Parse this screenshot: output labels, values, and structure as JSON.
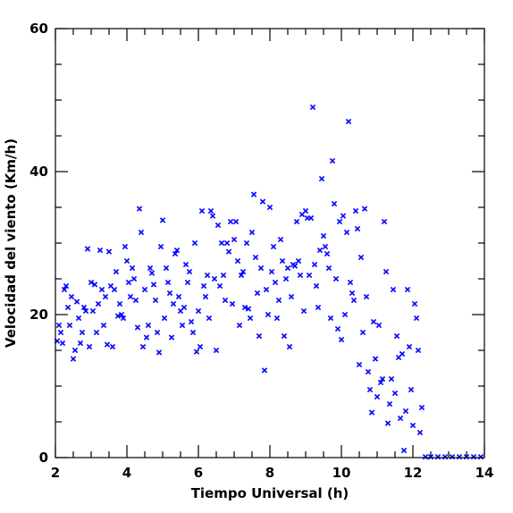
{
  "chart_data": {
    "type": "scatter",
    "title": "",
    "xlabel": "Tiempo Universal (h)",
    "ylabel": "Velocidad del viento (Km/h)",
    "xlim": [
      2,
      14
    ],
    "ylim": [
      0,
      60
    ],
    "x_ticks": [
      2,
      4,
      6,
      8,
      10,
      12,
      14
    ],
    "y_ticks": [
      0,
      20,
      40,
      60
    ],
    "x_tick_labels": [
      "2",
      "4",
      "6",
      "8",
      "10",
      "12",
      "14"
    ],
    "y_tick_labels": [
      "0",
      "20",
      "40",
      "60"
    ],
    "marker": "x",
    "marker_color": "#0000ff",
    "grid": false,
    "series": [
      {
        "points": [
          [
            2.05,
            16.3
          ],
          [
            2.1,
            18.5
          ],
          [
            2.15,
            17.5
          ],
          [
            2.2,
            16.0
          ],
          [
            2.25,
            23.5
          ],
          [
            2.3,
            24.0
          ],
          [
            2.35,
            21.0
          ],
          [
            2.4,
            18.5
          ],
          [
            2.45,
            22.5
          ],
          [
            2.5,
            13.8
          ],
          [
            2.55,
            15.0
          ],
          [
            2.6,
            21.8
          ],
          [
            2.65,
            19.5
          ],
          [
            2.7,
            16.0
          ],
          [
            2.75,
            17.5
          ],
          [
            2.8,
            21.0
          ],
          [
            2.85,
            20.5
          ],
          [
            2.9,
            29.2
          ],
          [
            2.95,
            15.5
          ],
          [
            3.0,
            24.5
          ],
          [
            3.05,
            20.5
          ],
          [
            3.1,
            24.2
          ],
          [
            3.15,
            17.5
          ],
          [
            3.2,
            21.5
          ],
          [
            3.25,
            29.0
          ],
          [
            3.3,
            23.5
          ],
          [
            3.35,
            18.5
          ],
          [
            3.4,
            22.5
          ],
          [
            3.45,
            15.8
          ],
          [
            3.5,
            28.8
          ],
          [
            3.55,
            24.0
          ],
          [
            3.6,
            15.5
          ],
          [
            3.65,
            23.5
          ],
          [
            3.7,
            26.0
          ],
          [
            3.75,
            19.8
          ],
          [
            3.8,
            21.5
          ],
          [
            3.85,
            20.0
          ],
          [
            3.9,
            19.5
          ],
          [
            3.95,
            29.5
          ],
          [
            4.0,
            27.5
          ],
          [
            4.05,
            24.5
          ],
          [
            4.1,
            22.5
          ],
          [
            4.15,
            26.5
          ],
          [
            4.2,
            25.0
          ],
          [
            4.25,
            22.0
          ],
          [
            4.3,
            18.2
          ],
          [
            4.35,
            34.8
          ],
          [
            4.4,
            31.5
          ],
          [
            4.45,
            15.5
          ],
          [
            4.5,
            23.5
          ],
          [
            4.55,
            16.8
          ],
          [
            4.6,
            18.5
          ],
          [
            4.65,
            26.5
          ],
          [
            4.7,
            25.8
          ],
          [
            4.75,
            24.2
          ],
          [
            4.8,
            22.0
          ],
          [
            4.85,
            17.5
          ],
          [
            4.9,
            14.7
          ],
          [
            4.95,
            29.5
          ],
          [
            5.0,
            33.2
          ],
          [
            5.05,
            19.5
          ],
          [
            5.1,
            26.5
          ],
          [
            5.15,
            24.5
          ],
          [
            5.2,
            23.0
          ],
          [
            5.25,
            16.8
          ],
          [
            5.3,
            21.5
          ],
          [
            5.35,
            28.5
          ],
          [
            5.4,
            29.0
          ],
          [
            5.45,
            22.5
          ],
          [
            5.5,
            20.5
          ],
          [
            5.55,
            18.5
          ],
          [
            5.6,
            21.0
          ],
          [
            5.65,
            27.0
          ],
          [
            5.7,
            24.5
          ],
          [
            5.75,
            26.0
          ],
          [
            5.8,
            19.0
          ],
          [
            5.85,
            17.5
          ],
          [
            5.9,
            30.0
          ],
          [
            5.95,
            14.8
          ],
          [
            6.0,
            20.5
          ],
          [
            6.05,
            15.5
          ],
          [
            6.1,
            34.5
          ],
          [
            6.15,
            24.0
          ],
          [
            6.2,
            22.5
          ],
          [
            6.25,
            25.5
          ],
          [
            6.3,
            19.5
          ],
          [
            6.35,
            34.5
          ],
          [
            6.4,
            33.8
          ],
          [
            6.45,
            25.0
          ],
          [
            6.5,
            15.0
          ],
          [
            6.55,
            32.5
          ],
          [
            6.6,
            24.0
          ],
          [
            6.65,
            30.0
          ],
          [
            6.7,
            25.5
          ],
          [
            6.75,
            22.0
          ],
          [
            6.8,
            30.0
          ],
          [
            6.85,
            28.8
          ],
          [
            6.9,
            33.0
          ],
          [
            6.95,
            21.5
          ],
          [
            7.0,
            30.5
          ],
          [
            7.05,
            33.0
          ],
          [
            7.1,
            27.5
          ],
          [
            7.15,
            18.5
          ],
          [
            7.2,
            25.5
          ],
          [
            7.25,
            26.0
          ],
          [
            7.3,
            21.0
          ],
          [
            7.35,
            30.0
          ],
          [
            7.4,
            20.8
          ],
          [
            7.45,
            19.5
          ],
          [
            7.5,
            31.5
          ],
          [
            7.55,
            36.8
          ],
          [
            7.6,
            28.0
          ],
          [
            7.65,
            23.0
          ],
          [
            7.7,
            17.0
          ],
          [
            7.75,
            26.5
          ],
          [
            7.8,
            35.8
          ],
          [
            7.85,
            12.2
          ],
          [
            7.9,
            23.5
          ],
          [
            7.95,
            20.0
          ],
          [
            8.0,
            35.0
          ],
          [
            8.05,
            26.0
          ],
          [
            8.1,
            29.5
          ],
          [
            8.15,
            24.5
          ],
          [
            8.2,
            19.5
          ],
          [
            8.25,
            22.0
          ],
          [
            8.3,
            30.5
          ],
          [
            8.35,
            27.5
          ],
          [
            8.4,
            17.0
          ],
          [
            8.45,
            25.0
          ],
          [
            8.5,
            26.5
          ],
          [
            8.55,
            15.5
          ],
          [
            8.6,
            22.5
          ],
          [
            8.65,
            27.0
          ],
          [
            8.7,
            26.8
          ],
          [
            8.75,
            33.0
          ],
          [
            8.8,
            27.5
          ],
          [
            8.85,
            25.5
          ],
          [
            8.9,
            34.0
          ],
          [
            8.95,
            20.5
          ],
          [
            9.0,
            34.5
          ],
          [
            9.05,
            33.5
          ],
          [
            9.1,
            25.5
          ],
          [
            9.15,
            33.5
          ],
          [
            9.2,
            49.0
          ],
          [
            9.25,
            27.0
          ],
          [
            9.3,
            24.0
          ],
          [
            9.35,
            21.0
          ],
          [
            9.4,
            29.0
          ],
          [
            9.45,
            39.0
          ],
          [
            9.5,
            31.0
          ],
          [
            9.55,
            29.5
          ],
          [
            9.6,
            28.5
          ],
          [
            9.65,
            26.5
          ],
          [
            9.7,
            19.5
          ],
          [
            9.75,
            41.5
          ],
          [
            9.8,
            35.5
          ],
          [
            9.85,
            25.0
          ],
          [
            9.9,
            18.0
          ],
          [
            9.95,
            33.0
          ],
          [
            10.0,
            16.5
          ],
          [
            10.05,
            33.8
          ],
          [
            10.1,
            20.0
          ],
          [
            10.15,
            31.5
          ],
          [
            10.2,
            47.0
          ],
          [
            10.25,
            24.5
          ],
          [
            10.3,
            23.0
          ],
          [
            10.35,
            22.0
          ],
          [
            10.4,
            34.5
          ],
          [
            10.45,
            32.0
          ],
          [
            10.5,
            13.0
          ],
          [
            10.55,
            28.0
          ],
          [
            10.6,
            17.5
          ],
          [
            10.65,
            34.8
          ],
          [
            10.7,
            22.5
          ],
          [
            10.75,
            12.0
          ],
          [
            10.8,
            9.5
          ],
          [
            10.85,
            6.3
          ],
          [
            10.9,
            19.0
          ],
          [
            10.95,
            13.8
          ],
          [
            11.0,
            8.5
          ],
          [
            11.05,
            18.5
          ],
          [
            11.1,
            10.5
          ],
          [
            11.15,
            11.0
          ],
          [
            11.2,
            33.0
          ],
          [
            11.25,
            26.0
          ],
          [
            11.3,
            4.8
          ],
          [
            11.35,
            7.5
          ],
          [
            11.4,
            11.0
          ],
          [
            11.45,
            23.5
          ],
          [
            11.5,
            9.0
          ],
          [
            11.55,
            17.0
          ],
          [
            11.6,
            14.0
          ],
          [
            11.65,
            5.5
          ],
          [
            11.7,
            14.5
          ],
          [
            11.75,
            1.0
          ],
          [
            11.8,
            6.5
          ],
          [
            11.85,
            23.5
          ],
          [
            11.9,
            15.5
          ],
          [
            11.95,
            9.5
          ],
          [
            12.0,
            4.5
          ],
          [
            12.05,
            21.5
          ],
          [
            12.1,
            19.5
          ],
          [
            12.15,
            15.0
          ],
          [
            12.2,
            3.5
          ],
          [
            12.25,
            7.0
          ],
          [
            12.35,
            0.1
          ],
          [
            12.5,
            0.1
          ],
          [
            12.7,
            0.1
          ],
          [
            12.9,
            0.1
          ],
          [
            13.1,
            0.1
          ],
          [
            13.3,
            0.1
          ],
          [
            13.5,
            0.1
          ],
          [
            13.7,
            0.1
          ],
          [
            13.9,
            0.1
          ]
        ]
      }
    ]
  }
}
